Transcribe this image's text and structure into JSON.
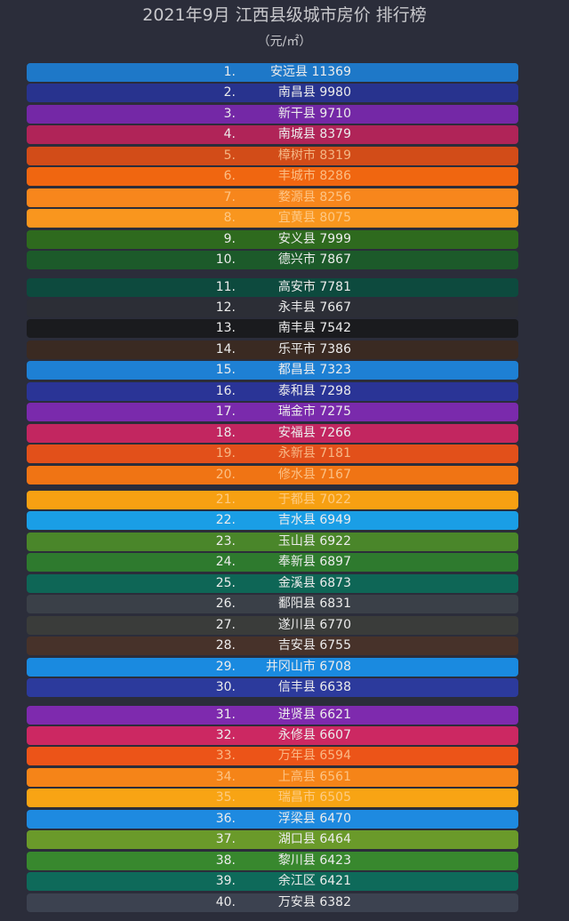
{
  "title": "2021年9月 江西县级城市房价 排行榜",
  "unit": "（元/㎡）",
  "chart_data": {
    "type": "table",
    "title": "2021年9月 江西县级城市房价 排行榜",
    "unit": "（元/㎡）",
    "rows": [
      {
        "rank": "1.",
        "name": "安远县",
        "price": 11369,
        "color": "#1e78c8"
      },
      {
        "rank": "2.",
        "name": "南昌县",
        "price": 9980,
        "color": "#28338e"
      },
      {
        "rank": "3.",
        "name": "新干县",
        "price": 9710,
        "color": "#7428a6"
      },
      {
        "rank": "4.",
        "name": "南城县",
        "price": 8379,
        "color": "#b02458"
      },
      {
        "rank": "5.",
        "name": "樟树市",
        "price": 8319,
        "color": "#d24c18"
      },
      {
        "rank": "6.",
        "name": "丰城市",
        "price": 8286,
        "color": "#f06610"
      },
      {
        "rank": "7.",
        "name": "婺源县",
        "price": 8256,
        "color": "#f7861c"
      },
      {
        "rank": "8.",
        "name": "宜黄县",
        "price": 8075,
        "color": "#f9961e"
      },
      {
        "rank": "9.",
        "name": "安义县",
        "price": 7999,
        "color": "#2e6a1e"
      },
      {
        "rank": "10.",
        "name": "德兴市",
        "price": 7867,
        "color": "#1c5a2a"
      },
      {
        "rank": "11.",
        "name": "高安市",
        "price": 7781,
        "color": "#0d4a3e"
      },
      {
        "rank": "12.",
        "name": "永丰县",
        "price": 7667,
        "color": "#2c2e36"
      },
      {
        "rank": "13.",
        "name": "南丰县",
        "price": 7542,
        "color": "#1a1b1e"
      },
      {
        "rank": "14.",
        "name": "乐平市",
        "price": 7386,
        "color": "#3a2a22"
      },
      {
        "rank": "15.",
        "name": "都昌县",
        "price": 7323,
        "color": "#1e80d4"
      },
      {
        "rank": "16.",
        "name": "泰和县",
        "price": 7298,
        "color": "#2a3496"
      },
      {
        "rank": "17.",
        "name": "瑞金市",
        "price": 7275,
        "color": "#7a2aac"
      },
      {
        "rank": "18.",
        "name": "安福县",
        "price": 7266,
        "color": "#c22660"
      },
      {
        "rank": "19.",
        "name": "永新县",
        "price": 7181,
        "color": "#e2501a"
      },
      {
        "rank": "20.",
        "name": "修水县",
        "price": 7167,
        "color": "#f07414"
      },
      {
        "rank": "21.",
        "name": "于都县",
        "price": 7022,
        "color": "#f7a012"
      },
      {
        "rank": "22.",
        "name": "吉水县",
        "price": 6949,
        "color": "#1a9ee6"
      },
      {
        "rank": "23.",
        "name": "玉山县",
        "price": 6922,
        "color": "#4a862a"
      },
      {
        "rank": "24.",
        "name": "奉新县",
        "price": 6897,
        "color": "#2e7a2e"
      },
      {
        "rank": "25.",
        "name": "金溪县",
        "price": 6873,
        "color": "#0e6656"
      },
      {
        "rank": "26.",
        "name": "鄱阳县",
        "price": 6831,
        "color": "#3a4048"
      },
      {
        "rank": "27.",
        "name": "遂川县",
        "price": 6770,
        "color": "#3a3c3a"
      },
      {
        "rank": "28.",
        "name": "吉安县",
        "price": 6755,
        "color": "#47322a"
      },
      {
        "rank": "29.",
        "name": "井冈山市",
        "price": 6708,
        "color": "#1a8ae0"
      },
      {
        "rank": "30.",
        "name": "信丰县",
        "price": 6638,
        "color": "#2c3a9c"
      },
      {
        "rank": "31.",
        "name": "进贤县",
        "price": 6621,
        "color": "#7e2aae"
      },
      {
        "rank": "32.",
        "name": "永修县",
        "price": 6607,
        "color": "#cc2862"
      },
      {
        "rank": "33.",
        "name": "万年县",
        "price": 6594,
        "color": "#ec5418"
      },
      {
        "rank": "34.",
        "name": "上高县",
        "price": 6561,
        "color": "#f58418"
      },
      {
        "rank": "35.",
        "name": "瑞昌市",
        "price": 6505,
        "color": "#f8a414"
      },
      {
        "rank": "36.",
        "name": "浮梁县",
        "price": 6470,
        "color": "#1e8ae0"
      },
      {
        "rank": "37.",
        "name": "湖口县",
        "price": 6464,
        "color": "#6a9a2a"
      },
      {
        "rank": "38.",
        "name": "黎川县",
        "price": 6423,
        "color": "#38882e"
      },
      {
        "rank": "39.",
        "name": "余江区",
        "price": 6421,
        "color": "#0e6a5a"
      },
      {
        "rank": "40.",
        "name": "万安县",
        "price": 6382,
        "color": "#3c4250"
      }
    ]
  }
}
